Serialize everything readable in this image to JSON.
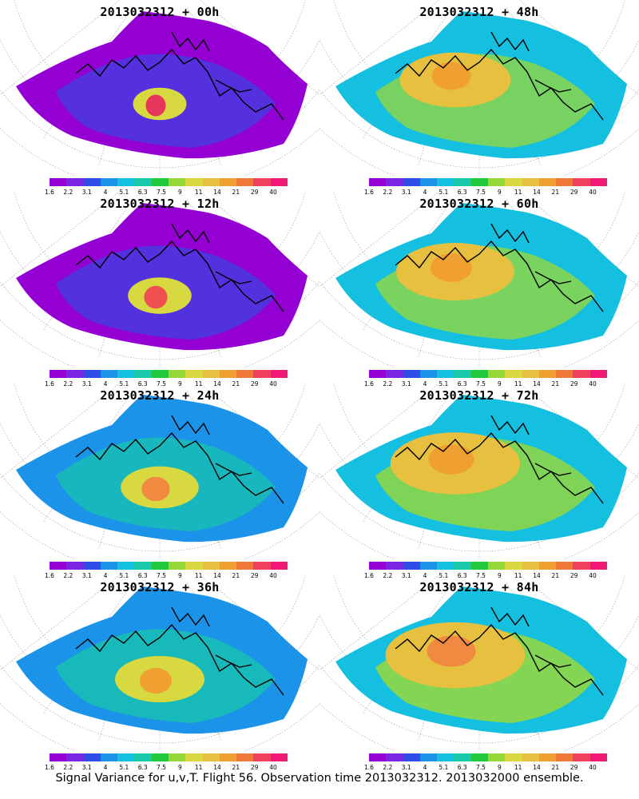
{
  "panels": [
    {
      "title": "2013032312 + 00h",
      "intensity": 0.15,
      "peak": "#e8355a"
    },
    {
      "title": "2013032312 + 48h",
      "intensity": 0.55,
      "peak": "#f0a030"
    },
    {
      "title": "2013032312 + 12h",
      "intensity": 0.22,
      "peak": "#ee5050"
    },
    {
      "title": "2013032312 + 60h",
      "intensity": 0.6,
      "peak": "#f0a030"
    },
    {
      "title": "2013032312 + 24h",
      "intensity": 0.32,
      "peak": "#f08a40"
    },
    {
      "title": "2013032312 + 72h",
      "intensity": 0.68,
      "peak": "#f0a030"
    },
    {
      "title": "2013032312 + 36h",
      "intensity": 0.4,
      "peak": "#f0a030"
    },
    {
      "title": "2013032312 + 84h",
      "intensity": 0.75,
      "peak": "#f08a40"
    }
  ],
  "colorbar": {
    "colors": [
      "#9400d3",
      "#7a28e0",
      "#2e4ee6",
      "#1a93e8",
      "#14bfe0",
      "#18c8a8",
      "#22c83c",
      "#96d83a",
      "#d8d840",
      "#e8c040",
      "#f0a030",
      "#f07838",
      "#f04060",
      "#f01878"
    ],
    "labels": [
      "1.6",
      "2.2",
      "3.1",
      "4",
      "5.1",
      "6.3",
      "7.5",
      "9",
      "11",
      "14",
      "21",
      "29",
      "40"
    ]
  },
  "caption": "Signal Variance for u,v,T. Flight 56. Observation time 2013032312. 2013032000 ensemble."
}
